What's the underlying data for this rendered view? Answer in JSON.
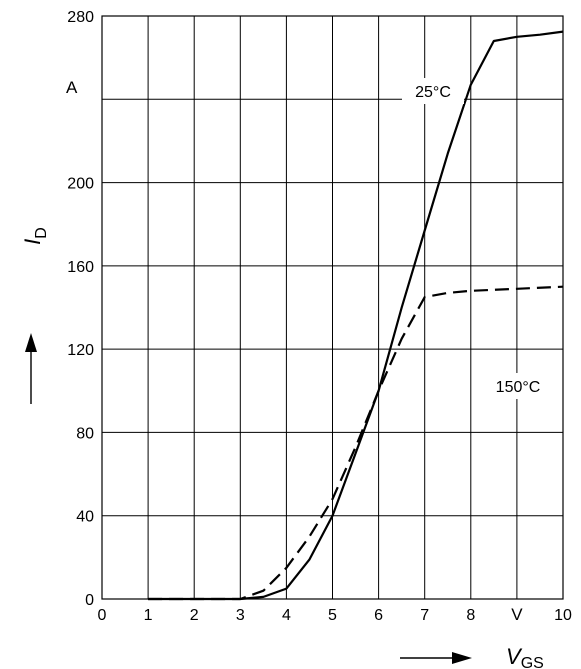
{
  "chart_data": {
    "type": "line",
    "x_axis": {
      "title": "V",
      "title_subscript": "GS",
      "unit": "V",
      "range": [
        0,
        10
      ],
      "ticks": [
        "0",
        "1",
        "2",
        "3",
        "4",
        "5",
        "6",
        "7",
        "8",
        "10"
      ]
    },
    "y_axis": {
      "title": "I",
      "title_subscript": "D",
      "unit": "A",
      "range": [
        0,
        280
      ],
      "ticks": [
        "0",
        "40",
        "80",
        "120",
        "160",
        "200",
        "280"
      ]
    },
    "grid": true,
    "series": [
      {
        "name": "25°C",
        "style": "solid",
        "points": [
          [
            1,
            0
          ],
          [
            2,
            0
          ],
          [
            3,
            0
          ],
          [
            3.5,
            1
          ],
          [
            4,
            5
          ],
          [
            4.5,
            19
          ],
          [
            5,
            40
          ],
          [
            5.5,
            70
          ],
          [
            6,
            100
          ],
          [
            6.5,
            140
          ],
          [
            7,
            177
          ],
          [
            7.5,
            214
          ],
          [
            8,
            247
          ],
          [
            8.5,
            268
          ],
          [
            9,
            270
          ],
          [
            9.5,
            271
          ],
          [
            10,
            272.5
          ]
        ]
      },
      {
        "name": "150°C",
        "style": "dashed",
        "points": [
          [
            1,
            0
          ],
          [
            2,
            0
          ],
          [
            3,
            0
          ],
          [
            3.5,
            4
          ],
          [
            4,
            15
          ],
          [
            4.5,
            30
          ],
          [
            5,
            48
          ],
          [
            5.5,
            73
          ],
          [
            6,
            100
          ],
          [
            6.5,
            125
          ],
          [
            7,
            145
          ],
          [
            7.5,
            147
          ],
          [
            8,
            148
          ],
          [
            9,
            149
          ],
          [
            10,
            150
          ]
        ]
      }
    ]
  }
}
